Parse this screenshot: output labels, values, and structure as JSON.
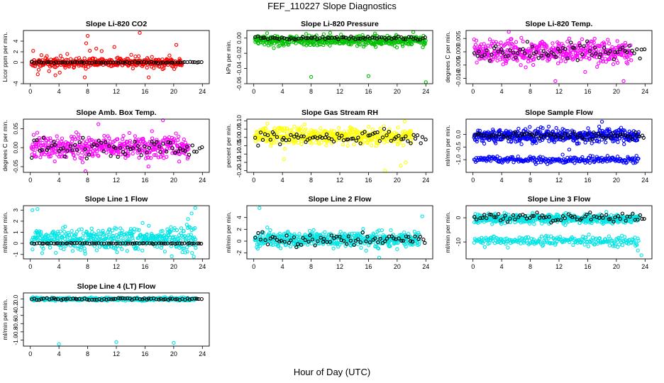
{
  "figure": {
    "title": "FEF_110227  Slope Diagnostics",
    "xlabel": "Hour of Day (UTC)"
  },
  "chart_data": [
    {
      "type": "scatter",
      "title": "Slope Li-820 CO2",
      "ylabel": "Licor ppm per min.",
      "xlim": [
        0,
        24
      ],
      "xticks": [
        0,
        4,
        8,
        12,
        16,
        20,
        24
      ],
      "ylim": [
        -4,
        6
      ],
      "yticks": [
        -4,
        0,
        2,
        4
      ],
      "color": "#ff0000",
      "series": [
        {
          "seed": 11,
          "n": 420,
          "step": 0.05,
          "base": 0,
          "spread": 0.7,
          "out_p": 0.05,
          "out_spread": 2.0
        },
        {
          "color": "#000000",
          "seed": 12,
          "n": 72,
          "step": 0.333,
          "base": 0,
          "spread": 0.12,
          "out_p": 0,
          "out_spread": 0
        }
      ],
      "outliers": [
        [
          8.0,
          5.0
        ],
        [
          7.6,
          -2.8
        ],
        [
          7.8,
          3.6
        ],
        [
          3.5,
          -2.4
        ],
        [
          8.3,
          2.2
        ],
        [
          9.2,
          2.6
        ]
      ]
    },
    {
      "type": "scatter",
      "title": "Slope Li-820 Pressure",
      "ylabel": "kPa per min.",
      "xlim": [
        0,
        24
      ],
      "xticks": [
        0,
        4,
        8,
        12,
        16,
        20,
        24
      ],
      "ylim": [
        -0.06,
        0.01
      ],
      "yticks": [
        -0.06,
        -0.04,
        -0.02,
        0.0
      ],
      "ytick_labels": [
        "-0.06",
        "-0.04",
        "-0.02",
        "0.00"
      ],
      "color": "#00c000",
      "series": [
        {
          "seed": 21,
          "n": 520,
          "step": 0.05,
          "base": -0.003,
          "spread": 0.006,
          "out_p": 0,
          "out_spread": 0
        },
        {
          "color": "#000000",
          "seed": 22,
          "n": 72,
          "step": 0.333,
          "base": 0.0,
          "spread": 0.002,
          "out_p": 0,
          "out_spread": 0
        }
      ],
      "outliers": [
        [
          8.0,
          -0.051
        ],
        [
          16.0,
          -0.05
        ],
        [
          24.0,
          -0.058
        ]
      ]
    },
    {
      "type": "scatter",
      "title": "Slope Li-820 Temp.",
      "ylabel": "degrees C per min.",
      "xlim": [
        0,
        24
      ],
      "xticks": [
        0,
        4,
        8,
        12,
        16,
        20,
        24
      ],
      "ylim": [
        -0.012,
        0.008
      ],
      "yticks": [
        -0.01,
        -0.005,
        0.0,
        0.005
      ],
      "ytick_labels": [
        "-0.010",
        "-0.005",
        "0.000",
        "0.005"
      ],
      "color": "#ff00ff",
      "series": [
        {
          "seed": 31,
          "n": 440,
          "step": 0.05,
          "base": 0.0,
          "spread": 0.004,
          "out_p": 0,
          "out_spread": 0
        },
        {
          "color": "#000000",
          "seed": 32,
          "n": 72,
          "step": 0.333,
          "base": 0.0,
          "spread": 0.0035,
          "out_p": 0,
          "out_spread": 0
        }
      ],
      "outliers": [
        [
          5.0,
          0.0075
        ],
        [
          11.5,
          -0.011
        ],
        [
          21.0,
          -0.011
        ]
      ]
    },
    {
      "type": "scatter",
      "title": "Slope Amb. Box Temp.",
      "ylabel": "degrees C per min.",
      "xlim": [
        0,
        24
      ],
      "xticks": [
        0,
        4,
        8,
        12,
        16,
        20,
        24
      ],
      "ylim": [
        -0.065,
        0.075
      ],
      "yticks": [
        -0.05,
        0.0,
        0.05
      ],
      "ytick_labels": [
        "-0.05",
        "0.00",
        "0.05"
      ],
      "color": "#ff00ff",
      "series": [
        {
          "seed": 41,
          "n": 440,
          "step": 0.05,
          "base": 0.0,
          "spread": 0.028,
          "out_p": 0,
          "out_spread": 0
        },
        {
          "color": "#000000",
          "seed": 42,
          "n": 72,
          "step": 0.333,
          "base": 0.0,
          "spread": 0.025,
          "out_p": 0,
          "out_spread": 0
        }
      ],
      "outliers": [
        [
          7.7,
          -0.062
        ],
        [
          18.5,
          0.072
        ],
        [
          9.5,
          0.062
        ]
      ]
    },
    {
      "type": "scatter",
      "title": "Slope Gas Stream RH",
      "ylabel": "percent per min.",
      "xlim": [
        0,
        24
      ],
      "xticks": [
        0,
        4,
        8,
        12,
        16,
        20,
        24
      ],
      "ylim": [
        -0.21,
        0.11
      ],
      "yticks": [
        -0.2,
        -0.15,
        -0.1,
        -0.05,
        0.0,
        0.05,
        0.1
      ],
      "ytick_labels": [
        "-0.20",
        "-0.15",
        "-0.10",
        "-0.05",
        "0.00",
        "0.05",
        "0.10"
      ],
      "color": "#ffff00",
      "series": [
        {
          "seed": 51,
          "n": 440,
          "step": 0.05,
          "base": 0.01,
          "spread": 0.045,
          "out_p": 0,
          "out_spread": 0
        },
        {
          "color": "#000000",
          "seed": 52,
          "n": 72,
          "step": 0.333,
          "base": 0.0,
          "spread": 0.035,
          "out_p": 0,
          "out_spread": 0
        }
      ],
      "outliers": [
        [
          18.3,
          -0.2
        ],
        [
          20.5,
          -0.17
        ],
        [
          4.2,
          -0.13
        ],
        [
          21.2,
          -0.15
        ]
      ]
    },
    {
      "type": "scatter",
      "title": "Slope Sample Flow",
      "ylabel": "ml/min per min.",
      "xlim": [
        0,
        24
      ],
      "xticks": [
        0,
        4,
        8,
        12,
        16,
        20,
        24
      ],
      "ylim": [
        -1.5,
        0.6
      ],
      "yticks": [
        -1.0,
        -0.5,
        0.0
      ],
      "ytick_labels": [
        "-1.0",
        "-0.5",
        "0.0"
      ],
      "color": "#0000ff",
      "series": [
        {
          "seed": 61,
          "n": 460,
          "step": 0.05,
          "base": -0.05,
          "spread": 0.25,
          "out_p": 0,
          "out_spread": 0
        },
        {
          "seed": 63,
          "n": 230,
          "step": 0.1,
          "base": -1.0,
          "spread": 0.12,
          "out_p": 0,
          "out_spread": 0
        },
        {
          "color": "#000000",
          "seed": 62,
          "n": 72,
          "step": 0.333,
          "base": -0.05,
          "spread": 0.12,
          "out_p": 0,
          "out_spread": 0
        }
      ],
      "outliers": [
        [
          18.0,
          0.5
        ]
      ]
    },
    {
      "type": "scatter",
      "title": "Slope Line 1 Flow",
      "ylabel": "ml/min per min.",
      "xlim": [
        0,
        24
      ],
      "xticks": [
        0,
        4,
        8,
        12,
        16,
        20,
        24
      ],
      "ylim": [
        -1.4,
        3.4
      ],
      "yticks": [
        -1,
        0,
        1,
        2,
        3
      ],
      "color": "#00e5e5",
      "series": [
        {
          "seed": 71,
          "n": 460,
          "step": 0.05,
          "base": 0.4,
          "spread": 0.9,
          "out_p": 0,
          "out_spread": 0
        },
        {
          "color": "#000000",
          "seed": 72,
          "n": 72,
          "step": 0.333,
          "base": 0.0,
          "spread": 0.03,
          "out_p": 0,
          "out_spread": 0
        }
      ],
      "outliers": [
        [
          0.3,
          3.0
        ],
        [
          1.0,
          3.1
        ],
        [
          23.0,
          3.2
        ],
        [
          22.5,
          2.7
        ],
        [
          22.0,
          2.2
        ],
        [
          22.8,
          -1.2
        ]
      ]
    },
    {
      "type": "scatter",
      "title": "Slope Line 2 Flow",
      "ylabel": "ml/min per min.",
      "xlim": [
        0,
        24
      ],
      "xticks": [
        0,
        4,
        8,
        12,
        16,
        20,
        24
      ],
      "ylim": [
        -3,
        6
      ],
      "yticks": [
        -2,
        0,
        2,
        4
      ],
      "color": "#00e5e5",
      "series": [
        {
          "seed": 81,
          "n": 460,
          "step": 0.05,
          "base": 0.3,
          "spread": 1.2,
          "out_p": 0,
          "out_spread": 0
        },
        {
          "color": "#000000",
          "seed": 82,
          "n": 72,
          "step": 0.333,
          "base": 0.2,
          "spread": 0.9,
          "out_p": 0,
          "out_spread": 0
        }
      ],
      "outliers": [
        [
          0.8,
          5.6
        ],
        [
          17.5,
          -2.8
        ],
        [
          23.5,
          4.2
        ]
      ]
    },
    {
      "type": "scatter",
      "title": "Slope Line 3 Flow",
      "ylabel": "ml/min per min.",
      "xlim": [
        0,
        24
      ],
      "xticks": [
        0,
        4,
        8,
        12,
        16,
        20,
        24
      ],
      "ylim": [
        -17,
        5
      ],
      "yticks": [
        -10,
        0
      ],
      "color": "#00e5e5",
      "series": [
        {
          "seed": 91,
          "n": 460,
          "step": 0.05,
          "base": -0.5,
          "spread": 1.8,
          "out_p": 0,
          "out_spread": 0
        },
        {
          "seed": 93,
          "n": 230,
          "step": 0.1,
          "base": -9.5,
          "spread": 1.8,
          "out_p": 0,
          "out_spread": 0
        },
        {
          "color": "#000000",
          "seed": 92,
          "n": 72,
          "step": 0.333,
          "base": 0.0,
          "spread": 1.8,
          "out_p": 0,
          "out_spread": 0
        }
      ],
      "outliers": [
        [
          23.5,
          -15.5
        ],
        [
          23.0,
          -13.5
        ]
      ]
    },
    {
      "type": "scatter",
      "title": "Slope Line 4 (LT) Flow",
      "ylabel": "ml/min per min.",
      "xlim": [
        0,
        24
      ],
      "xticks": [
        0,
        4,
        8,
        12,
        16,
        20,
        24
      ],
      "ylim": [
        -1.15,
        0.15
      ],
      "yticks": [
        -1.0,
        -0.8,
        -0.6,
        -0.4,
        -0.2,
        0.0
      ],
      "ytick_labels": [
        "-1.0",
        "-0.8",
        "-0.6",
        "-0.4",
        "-0.2",
        "0.0"
      ],
      "color": "#00e5e5",
      "series": [
        {
          "seed": 101,
          "n": 460,
          "step": 0.05,
          "base": 0.0,
          "spread": 0.03,
          "out_p": 0,
          "out_spread": 0
        },
        {
          "color": "#000000",
          "seed": 102,
          "n": 72,
          "step": 0.333,
          "base": 0.0,
          "spread": 0.02,
          "out_p": 0,
          "out_spread": 0
        }
      ],
      "outliers": [
        [
          4.0,
          -1.1
        ],
        [
          12.0,
          -1.05
        ],
        [
          20.0,
          -1.07
        ]
      ]
    }
  ]
}
